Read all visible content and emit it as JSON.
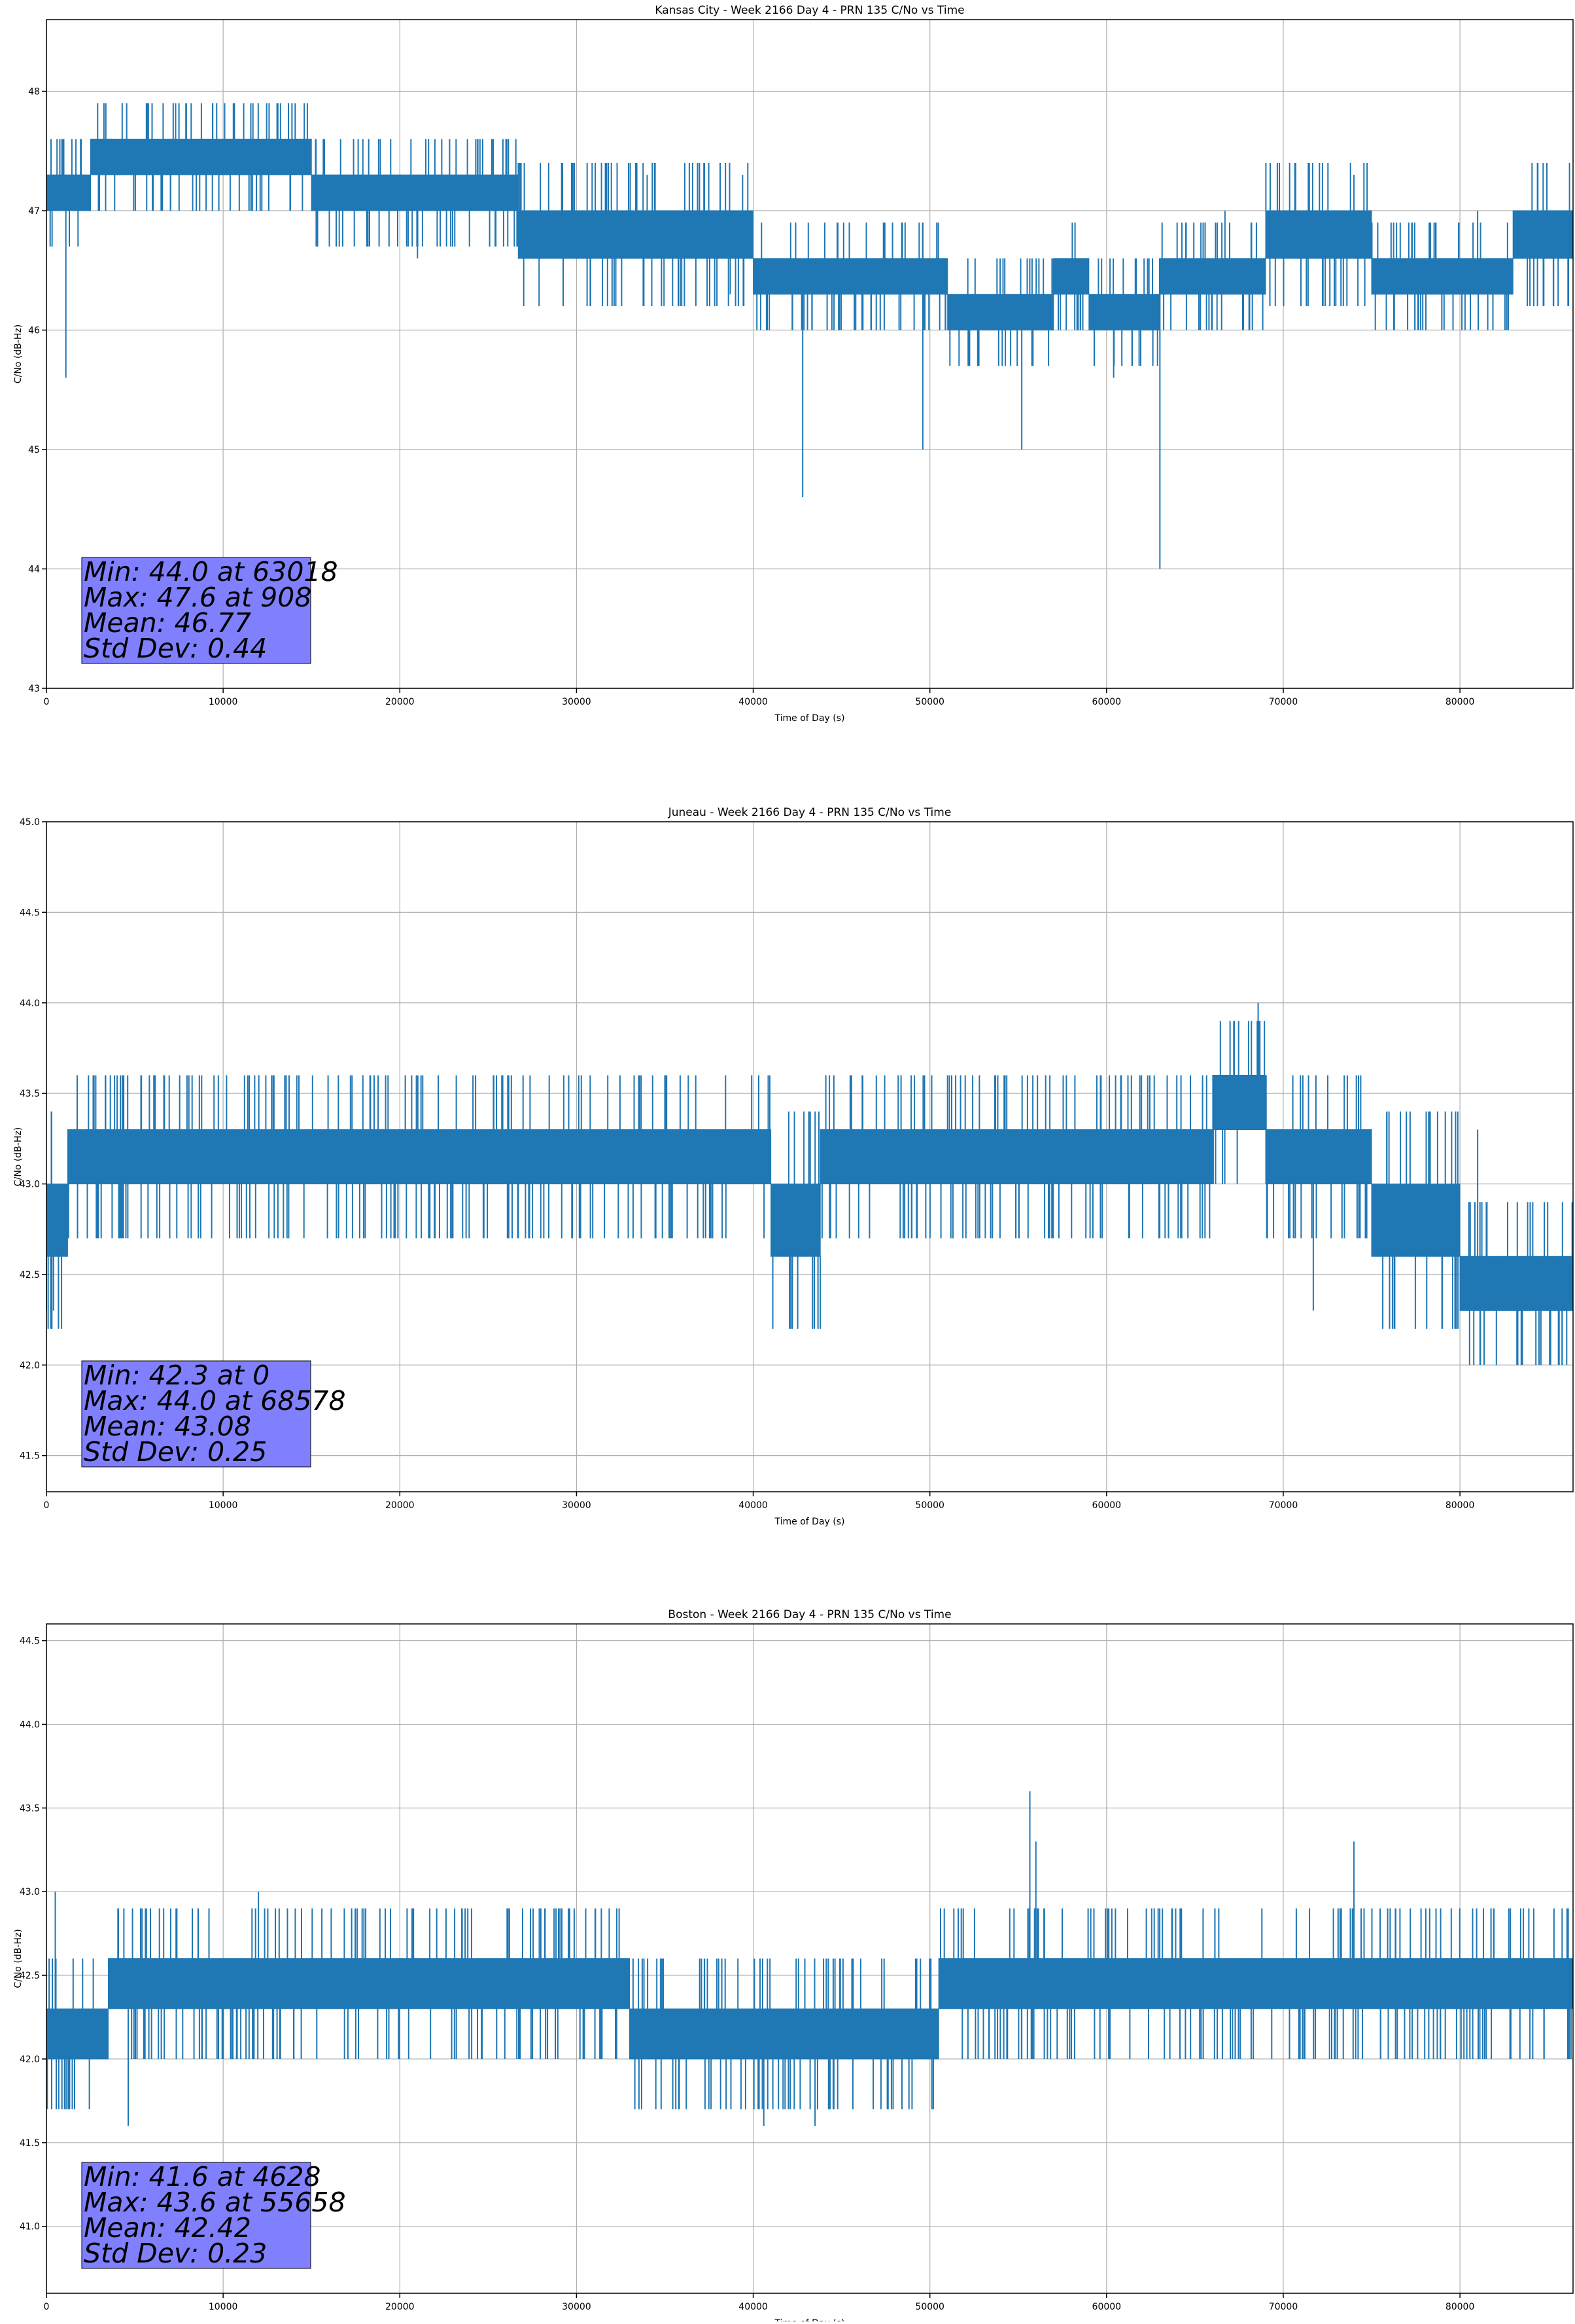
{
  "chart_data": [
    {
      "type": "line",
      "title": "Kansas City - Week 2166 Day 4 - PRN 135 C/No vs Time",
      "xlabel": "Time of Day (s)",
      "ylabel": "C/No (dB-Hz)",
      "xlim": [
        0,
        86400
      ],
      "ylim": [
        43,
        48.6
      ],
      "xticks": [
        0,
        10000,
        20000,
        30000,
        40000,
        50000,
        60000,
        70000,
        80000
      ],
      "xtick_labels": [
        "0",
        "10000",
        "20000",
        "30000",
        "40000",
        "50000",
        "60000",
        "70000",
        "80000"
      ],
      "yticks": [
        43,
        44,
        45,
        46,
        47,
        48
      ],
      "ytick_labels": [
        "43",
        "44",
        "45",
        "46",
        "47",
        "48"
      ],
      "grid": true,
      "series_color": "#1f77b4",
      "stats_box_color": "#8080ff",
      "stats_lines": [
        "Min: 44.0 at 63018",
        "Max: 47.6 at 908",
        "Mean: 46.77",
        "Std Dev: 0.44"
      ],
      "levels": [
        {
          "x0": 0,
          "x1": 2500,
          "low": 47.0,
          "high": 47.3
        },
        {
          "x0": 2500,
          "x1": 15000,
          "low": 47.3,
          "high": 47.6
        },
        {
          "x0": 15000,
          "x1": 26700,
          "low": 47.0,
          "high": 47.3
        },
        {
          "x0": 26700,
          "x1": 40000,
          "low": 46.6,
          "high": 47.0
        },
        {
          "x0": 40000,
          "x1": 51000,
          "low": 46.3,
          "high": 46.6
        },
        {
          "x0": 51000,
          "x1": 57000,
          "low": 46.0,
          "high": 46.3
        },
        {
          "x0": 57000,
          "x1": 59000,
          "low": 46.3,
          "high": 46.6
        },
        {
          "x0": 59000,
          "x1": 63000,
          "low": 46.0,
          "high": 46.3
        },
        {
          "x0": 63000,
          "x1": 69000,
          "low": 46.3,
          "high": 46.6
        },
        {
          "x0": 69000,
          "x1": 75000,
          "low": 46.6,
          "high": 47.0
        },
        {
          "x0": 75000,
          "x1": 83000,
          "low": 46.3,
          "high": 46.6
        },
        {
          "x0": 83000,
          "x1": 86400,
          "low": 46.6,
          "high": 47.0
        }
      ],
      "spikes": [
        {
          "x": 1100,
          "y": 45.6
        },
        {
          "x": 21000,
          "y": 46.6
        },
        {
          "x": 42800,
          "y": 44.6
        },
        {
          "x": 49600,
          "y": 45.0
        },
        {
          "x": 55200,
          "y": 45.0
        },
        {
          "x": 60400,
          "y": 45.6
        },
        {
          "x": 63018,
          "y": 44.0
        },
        {
          "x": 38700,
          "y": 46.3
        },
        {
          "x": 908,
          "y": 47.6
        },
        {
          "x": 18800,
          "y": 47.6
        },
        {
          "x": 24300,
          "y": 47.6
        },
        {
          "x": 34000,
          "y": 47.3
        },
        {
          "x": 39400,
          "y": 47.3
        },
        {
          "x": 66700,
          "y": 47.0
        },
        {
          "x": 74000,
          "y": 47.3
        },
        {
          "x": 81000,
          "y": 47.0
        }
      ],
      "noise_seed": 11
    },
    {
      "type": "line",
      "title": "Juneau - Week 2166 Day 4 - PRN 135 C/No vs Time",
      "xlabel": "Time of Day (s)",
      "ylabel": "C/No (dB-Hz)",
      "xlim": [
        0,
        86400
      ],
      "ylim": [
        41.3,
        45.0
      ],
      "xticks": [
        0,
        10000,
        20000,
        30000,
        40000,
        50000,
        60000,
        70000,
        80000
      ],
      "xtick_labels": [
        "0",
        "10000",
        "20000",
        "30000",
        "40000",
        "50000",
        "60000",
        "70000",
        "80000"
      ],
      "yticks": [
        41.5,
        42.0,
        42.5,
        43.0,
        43.5,
        44.0,
        44.5,
        45.0
      ],
      "ytick_labels": [
        "41.5",
        "42.0",
        "42.5",
        "43.0",
        "43.5",
        "44.0",
        "44.5",
        "45.0"
      ],
      "grid": true,
      "series_color": "#1f77b4",
      "stats_box_color": "#8080ff",
      "stats_lines": [
        "Min: 42.3 at 0",
        "Max: 44.0 at 68578",
        "Mean: 43.08",
        "Std Dev: 0.25"
      ],
      "levels": [
        {
          "x0": 0,
          "x1": 1200,
          "low": 42.6,
          "high": 43.0
        },
        {
          "x0": 1200,
          "x1": 41000,
          "low": 43.0,
          "high": 43.3
        },
        {
          "x0": 41000,
          "x1": 43800,
          "low": 42.6,
          "high": 43.0
        },
        {
          "x0": 43800,
          "x1": 66000,
          "low": 43.0,
          "high": 43.3
        },
        {
          "x0": 66000,
          "x1": 69000,
          "low": 43.3,
          "high": 43.6
        },
        {
          "x0": 69000,
          "x1": 75000,
          "low": 43.0,
          "high": 43.3
        },
        {
          "x0": 75000,
          "x1": 80000,
          "low": 42.6,
          "high": 43.0
        },
        {
          "x0": 80000,
          "x1": 86400,
          "low": 42.3,
          "high": 42.6
        }
      ],
      "spikes": [
        {
          "x": 0,
          "y": 42.3
        },
        {
          "x": 400,
          "y": 42.3
        },
        {
          "x": 68578,
          "y": 44.0
        },
        {
          "x": 71700,
          "y": 42.3
        },
        {
          "x": 81000,
          "y": 43.3
        },
        {
          "x": 21200,
          "y": 43.6
        },
        {
          "x": 35000,
          "y": 43.6
        },
        {
          "x": 52000,
          "y": 43.6
        },
        {
          "x": 46200,
          "y": 43.6
        }
      ],
      "noise_seed": 23
    },
    {
      "type": "line",
      "title": "Boston - Week 2166 Day 4 - PRN 135 C/No vs Time",
      "xlabel": "Time of Day (s)",
      "ylabel": "C/No (dB-Hz)",
      "xlim": [
        0,
        86400
      ],
      "ylim": [
        40.6,
        44.6
      ],
      "xticks": [
        0,
        10000,
        20000,
        30000,
        40000,
        50000,
        60000,
        70000,
        80000
      ],
      "xtick_labels": [
        "0",
        "10000",
        "20000",
        "30000",
        "40000",
        "50000",
        "60000",
        "70000",
        "80000"
      ],
      "yticks": [
        41.0,
        41.5,
        42.0,
        42.5,
        43.0,
        43.5,
        44.0,
        44.5
      ],
      "ytick_labels": [
        "41.0",
        "41.5",
        "42.0",
        "42.5",
        "43.0",
        "43.5",
        "44.0",
        "44.5"
      ],
      "grid": true,
      "series_color": "#1f77b4",
      "stats_box_color": "#8080ff",
      "stats_lines": [
        "Min: 41.6 at 4628",
        "Max: 43.6 at 55658",
        "Mean: 42.42",
        "Std Dev: 0.23"
      ],
      "levels": [
        {
          "x0": 0,
          "x1": 3500,
          "low": 42.0,
          "high": 42.3
        },
        {
          "x0": 3500,
          "x1": 33000,
          "low": 42.3,
          "high": 42.6
        },
        {
          "x0": 33000,
          "x1": 50500,
          "low": 42.0,
          "high": 42.3
        },
        {
          "x0": 50500,
          "x1": 86400,
          "low": 42.3,
          "high": 42.6
        }
      ],
      "spikes": [
        {
          "x": 4628,
          "y": 41.6
        },
        {
          "x": 40600,
          "y": 41.6
        },
        {
          "x": 43500,
          "y": 41.6
        },
        {
          "x": 55658,
          "y": 43.6
        },
        {
          "x": 56000,
          "y": 43.3
        },
        {
          "x": 74000,
          "y": 43.3
        },
        {
          "x": 500,
          "y": 43.0
        },
        {
          "x": 12000,
          "y": 43.0
        },
        {
          "x": 20500,
          "y": 42.0
        }
      ],
      "noise_seed": 37
    }
  ]
}
